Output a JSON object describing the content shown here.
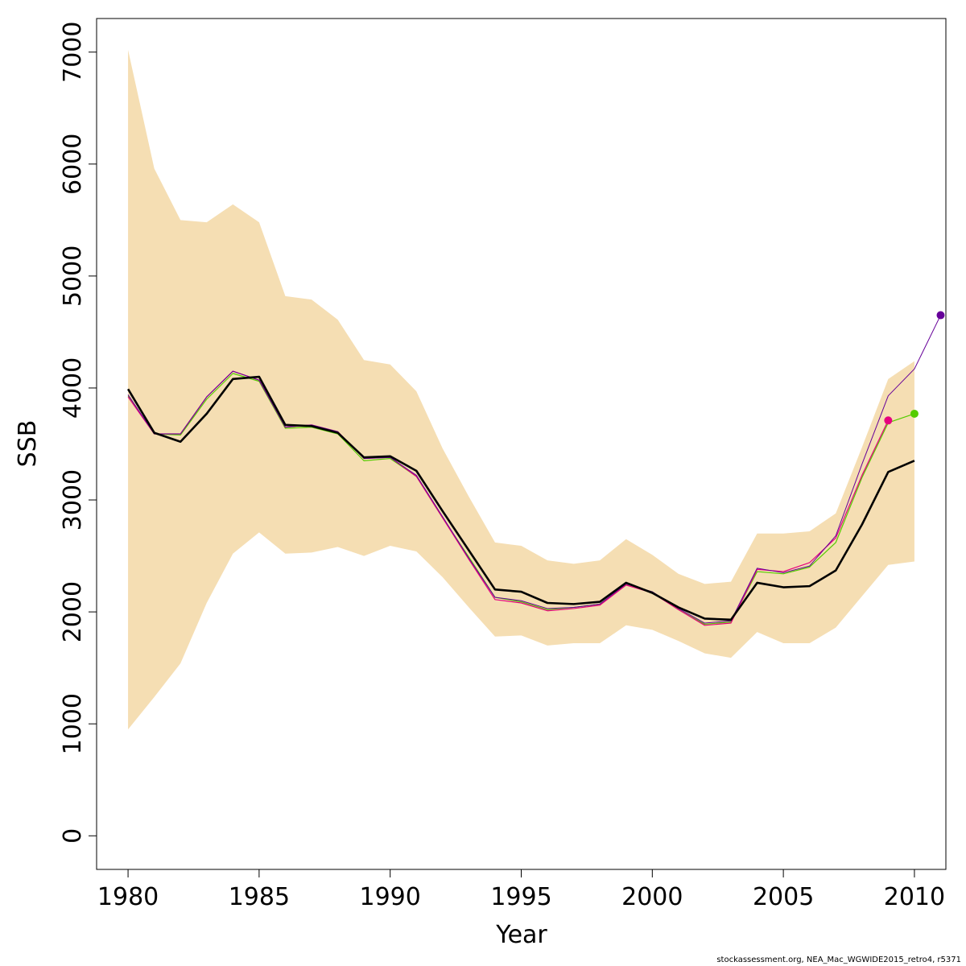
{
  "chart_data": {
    "type": "line",
    "xlabel": "Year",
    "ylabel": "SSB",
    "xlim": [
      1978.8,
      2011.2
    ],
    "ylim": [
      -300,
      7300
    ],
    "x_ticks": [
      1980,
      1985,
      1990,
      1995,
      2000,
      2005,
      2010
    ],
    "y_ticks": [
      0,
      1000,
      2000,
      3000,
      4000,
      5000,
      6000,
      7000
    ],
    "grid": false,
    "band_color": "#f5deb3",
    "confidence_band": {
      "x": [
        1980,
        1981,
        1982,
        1983,
        1984,
        1985,
        1986,
        1987,
        1988,
        1989,
        1990,
        1991,
        1992,
        1993,
        1994,
        1995,
        1996,
        1997,
        1998,
        1999,
        2000,
        2001,
        2002,
        2003,
        2004,
        2005,
        2006,
        2007,
        2008,
        2009,
        2010
      ],
      "lower": [
        950,
        1240,
        1540,
        2080,
        2520,
        2710,
        2520,
        2530,
        2580,
        2500,
        2590,
        2540,
        2310,
        2040,
        1780,
        1790,
        1700,
        1720,
        1720,
        1880,
        1840,
        1740,
        1630,
        1590,
        1820,
        1720,
        1720,
        1860,
        2140,
        2420,
        2450
      ],
      "upper": [
        7020,
        5960,
        5500,
        5480,
        5640,
        5480,
        4820,
        4790,
        4610,
        4250,
        4210,
        3970,
        3460,
        3030,
        2620,
        2590,
        2460,
        2430,
        2460,
        2650,
        2510,
        2340,
        2250,
        2270,
        2700,
        2700,
        2720,
        2880,
        3470,
        4080,
        4240
      ]
    },
    "series": [
      {
        "color": "#000000",
        "width": 2.6,
        "x": [
          1980,
          1981,
          1982,
          1983,
          1984,
          1985,
          1986,
          1987,
          1988,
          1989,
          1990,
          1991,
          1992,
          1993,
          1994,
          1995,
          1996,
          1997,
          1998,
          1999,
          2000,
          2001,
          2002,
          2003,
          2004,
          2005,
          2006,
          2007,
          2008,
          2009,
          2010
        ],
        "values": [
          3990,
          3600,
          3520,
          3770,
          4080,
          4100,
          3670,
          3660,
          3600,
          3380,
          3390,
          3260,
          2900,
          2550,
          2200,
          2180,
          2080,
          2070,
          2090,
          2260,
          2170,
          2040,
          1940,
          1930,
          2260,
          2220,
          2230,
          2370,
          2780,
          3250,
          3350
        ]
      },
      {
        "color": "#55cc00",
        "width": 1.2,
        "endpoint": true,
        "x": [
          1980,
          1981,
          1982,
          1983,
          1984,
          1985,
          1986,
          1987,
          1988,
          1989,
          1990,
          1991,
          1992,
          1993,
          1994,
          1995,
          1996,
          1997,
          1998,
          1999,
          2000,
          2001,
          2002,
          2003,
          2004,
          2005,
          2006,
          2007,
          2008,
          2009,
          2010
        ],
        "values": [
          3930,
          3590,
          3580,
          3900,
          4130,
          4060,
          3640,
          3650,
          3590,
          3350,
          3370,
          3210,
          2840,
          2490,
          2130,
          2090,
          2020,
          2040,
          2070,
          2240,
          2180,
          2020,
          1890,
          1910,
          2360,
          2340,
          2400,
          2620,
          3200,
          3690,
          3770
        ]
      },
      {
        "color": "#e6007e",
        "width": 1.2,
        "endpoint": true,
        "x": [
          1980,
          1981,
          1982,
          1983,
          1984,
          1985,
          1986,
          1987,
          1988,
          1989,
          1990,
          1991,
          1992,
          1993,
          1994,
          1995,
          1996,
          1997,
          1998,
          1999,
          2000,
          2001,
          2002,
          2003,
          2004,
          2005,
          2006,
          2007,
          2008,
          2009
        ],
        "values": [
          3920,
          3590,
          3590,
          3920,
          4150,
          4070,
          3650,
          3670,
          3610,
          3370,
          3380,
          3210,
          2840,
          2470,
          2110,
          2080,
          2010,
          2030,
          2060,
          2240,
          2170,
          2020,
          1880,
          1900,
          2380,
          2360,
          2440,
          2660,
          3220,
          3710
        ]
      },
      {
        "color": "#660099",
        "width": 1.0,
        "endpoint": true,
        "x": [
          1980,
          1981,
          1982,
          1983,
          1984,
          1985,
          1986,
          1987,
          1988,
          1989,
          1990,
          1991,
          1992,
          1993,
          1994,
          1995,
          1996,
          1997,
          1998,
          1999,
          2000,
          2001,
          2002,
          2003,
          2004,
          2005,
          2006,
          2007,
          2008,
          2009,
          2010,
          2011
        ],
        "values": [
          3940,
          3590,
          3590,
          3920,
          4150,
          4070,
          3650,
          3670,
          3610,
          3370,
          3380,
          3220,
          2850,
          2480,
          2130,
          2100,
          2030,
          2040,
          2070,
          2250,
          2180,
          2030,
          1900,
          1920,
          2390,
          2350,
          2410,
          2680,
          3320,
          3930,
          4170,
          4650
        ]
      }
    ]
  },
  "footnote": "stockassessment.org, NEA_Mac_WGWIDE2015_retro4, r5371"
}
